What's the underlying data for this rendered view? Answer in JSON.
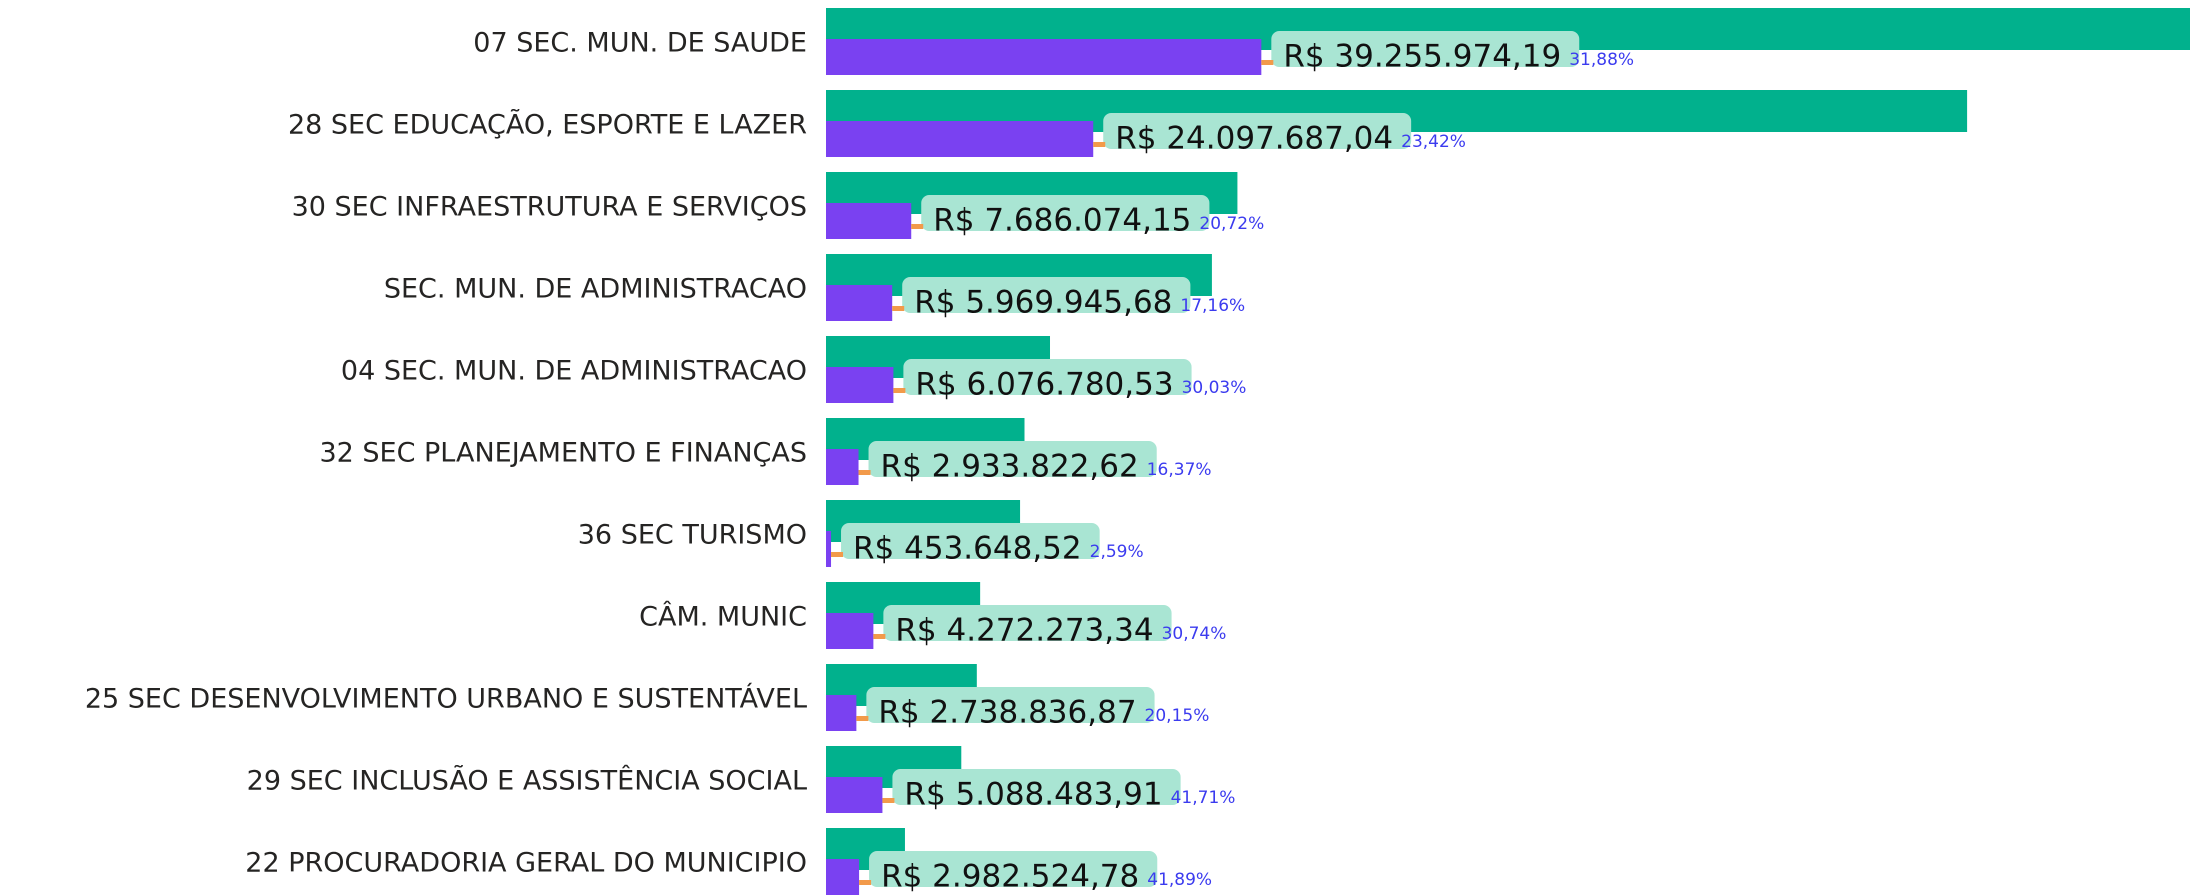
{
  "chart_data": {
    "type": "bar",
    "orientation": "horizontal",
    "categories": [
      "07 SEC. MUN. DE SAUDE",
      "28 SEC EDUCAÇÃO, ESPORTE E LAZER",
      "30 SEC INFRAESTRUTURA E SERVIÇOS",
      "SEC. MUN. DE ADMINISTRACAO",
      "04 SEC. MUN. DE ADMINISTRACAO",
      "32 SEC PLANEJAMENTO E FINANÇAS",
      "36 SEC TURISMO",
      "CÂM. MUNIC",
      "25 SEC DESENVOLVIMENTO URBANO E SUSTENTÁVEL",
      "29 SEC INCLUSÃO E ASSISTÊNCIA SOCIAL",
      "22 PROCURADORIA GERAL DO MUNICIPIO"
    ],
    "xlim": [
      0,
      123000000
    ],
    "series": [
      {
        "color": "#01b18d",
        "values": [
          123100000,
          102900000,
          37100000,
          34800000,
          20200000,
          17900000,
          17500000,
          13900000,
          13600000,
          12200000,
          7120000
        ]
      },
      {
        "color": "#7a41f1",
        "values": [
          39255974.19,
          24097687.04,
          7686074.15,
          5969945.68,
          6076780.53,
          2933822.62,
          453648.52,
          4272273.34,
          2738836.87,
          5088483.91,
          2982524.78
        ],
        "value_labels": [
          "R$ 39.255.974,19",
          "R$ 24.097.687,04",
          "R$ 7.686.074,15",
          "R$ 5.969.945,68",
          "R$ 6.076.780,53",
          "R$ 2.933.822,62",
          "R$ 453.648,52",
          "R$ 4.272.273,34",
          "R$ 2.738.836,87",
          "R$ 5.088.483,91",
          "R$ 2.982.524,78"
        ]
      }
    ],
    "shares": {
      "values": [
        31.88,
        23.42,
        20.72,
        17.16,
        30.03,
        16.37,
        2.59,
        30.74,
        20.15,
        41.71,
        41.89
      ],
      "value_labels": [
        "31,88%",
        "23,42%",
        "20,72%",
        "17,16%",
        "30,03%",
        "16,37%",
        "2,59%",
        "30,74%",
        "20,15%",
        "41,71%",
        "41,89%"
      ]
    }
  }
}
